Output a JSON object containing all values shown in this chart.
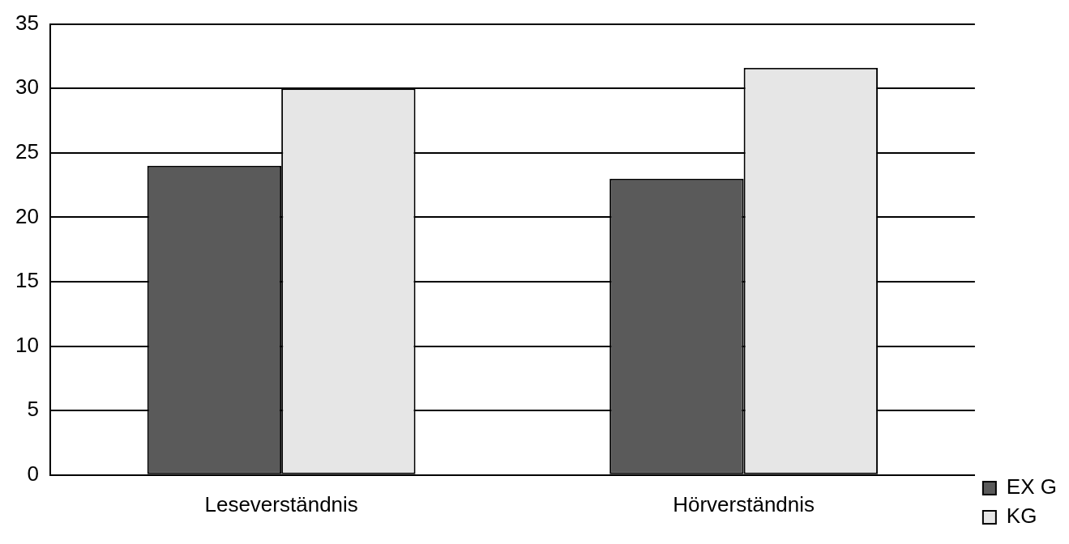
{
  "chart_data": {
    "type": "bar",
    "categories": [
      "Leseverständnis",
      "Hörverständnis"
    ],
    "series": [
      {
        "name": "EX G",
        "color": "#5a5a5a",
        "values": [
          24,
          23
        ]
      },
      {
        "name": "KG",
        "color": "#e6e6e6",
        "values": [
          30,
          31.6
        ]
      }
    ],
    "ylim": [
      0,
      35
    ],
    "yticks": [
      0,
      5,
      10,
      15,
      20,
      25,
      30,
      35
    ],
    "grid": "y",
    "legend": "bottom right"
  }
}
